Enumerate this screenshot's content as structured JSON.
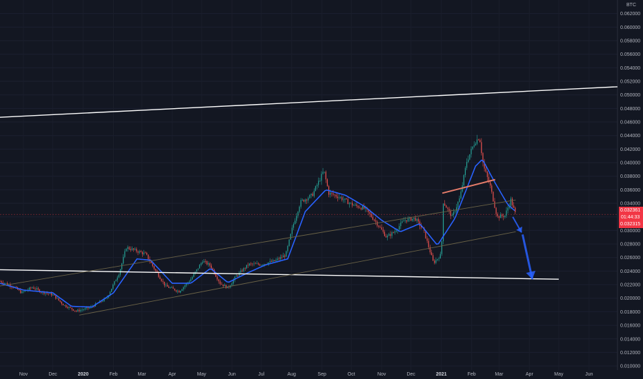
{
  "chart_data": {
    "type": "candlestick",
    "symbol_currency": "BTC",
    "ylim": [
      0.0094,
      0.064
    ],
    "y_ticks": [
      0.01,
      0.012,
      0.014,
      0.016,
      0.018,
      0.02,
      0.022,
      0.024,
      0.026,
      0.028,
      0.03,
      0.032,
      0.034,
      0.036,
      0.038,
      0.04,
      0.042,
      0.044,
      0.046,
      0.048,
      0.05,
      0.052,
      0.054,
      0.056,
      0.058,
      0.06,
      0.062
    ],
    "y_tick_labels": [
      "0.010000",
      "0.012000",
      "0.014000",
      "0.016000",
      "0.018000",
      "0.020000",
      "0.022000",
      "0.024000",
      "0.026000",
      "0.028000",
      "0.030000",
      "0.032000",
      "0.034000",
      "0.036000",
      "0.038000",
      "0.040000",
      "0.042000",
      "0.044000",
      "0.046000",
      "0.048000",
      "0.050000",
      "0.052000",
      "0.054000",
      "0.056000",
      "0.058000",
      "0.060000",
      "0.062000"
    ],
    "x_range": [
      "2019-10-08",
      "2021-06-30"
    ],
    "x_ticks": [
      {
        "date": "2019-11-01",
        "label": "Nov",
        "bold": false
      },
      {
        "date": "2019-12-01",
        "label": "Dec",
        "bold": false
      },
      {
        "date": "2020-01-01",
        "label": "2020",
        "bold": true
      },
      {
        "date": "2020-02-01",
        "label": "Feb",
        "bold": false
      },
      {
        "date": "2020-03-01",
        "label": "Mar",
        "bold": false
      },
      {
        "date": "2020-04-01",
        "label": "Apr",
        "bold": false
      },
      {
        "date": "2020-05-01",
        "label": "May",
        "bold": false
      },
      {
        "date": "2020-06-01",
        "label": "Jun",
        "bold": false
      },
      {
        "date": "2020-07-01",
        "label": "Jul",
        "bold": false
      },
      {
        "date": "2020-08-01",
        "label": "Aug",
        "bold": false
      },
      {
        "date": "2020-09-01",
        "label": "Sep",
        "bold": false
      },
      {
        "date": "2020-10-01",
        "label": "Oct",
        "bold": false
      },
      {
        "date": "2020-11-01",
        "label": "Nov",
        "bold": false
      },
      {
        "date": "2020-12-01",
        "label": "Dec",
        "bold": false
      },
      {
        "date": "2021-01-01",
        "label": "2021",
        "bold": true
      },
      {
        "date": "2021-02-01",
        "label": "Feb",
        "bold": false
      },
      {
        "date": "2021-03-01",
        "label": "Mar",
        "bold": false
      },
      {
        "date": "2021-04-01",
        "label": "Apr",
        "bold": false
      },
      {
        "date": "2021-05-01",
        "label": "May",
        "bold": false
      },
      {
        "date": "2021-06-01",
        "label": "Jun",
        "bold": false
      }
    ],
    "price_keypoints": [
      [
        "2019-10-08",
        0.0225
      ],
      [
        "2019-10-22",
        0.0217
      ],
      [
        "2019-10-30",
        0.0208
      ],
      [
        "2019-11-10",
        0.0216
      ],
      [
        "2019-11-20",
        0.0209
      ],
      [
        "2019-12-01",
        0.0205
      ],
      [
        "2019-12-12",
        0.019
      ],
      [
        "2019-12-25",
        0.0181
      ],
      [
        "2020-01-08",
        0.0186
      ],
      [
        "2020-01-25",
        0.02
      ],
      [
        "2020-02-07",
        0.0238
      ],
      [
        "2020-02-14",
        0.0275
      ],
      [
        "2020-02-24",
        0.027
      ],
      [
        "2020-03-05",
        0.0265
      ],
      [
        "2020-03-13",
        0.0245
      ],
      [
        "2020-03-25",
        0.0218
      ],
      [
        "2020-04-08",
        0.021
      ],
      [
        "2020-04-20",
        0.0228
      ],
      [
        "2020-05-02",
        0.0255
      ],
      [
        "2020-05-10",
        0.0248
      ],
      [
        "2020-05-20",
        0.0222
      ],
      [
        "2020-05-28",
        0.0215
      ],
      [
        "2020-06-05",
        0.0232
      ],
      [
        "2020-06-18",
        0.025
      ],
      [
        "2020-07-01",
        0.025
      ],
      [
        "2020-07-15",
        0.0255
      ],
      [
        "2020-07-26",
        0.0264
      ],
      [
        "2020-08-02",
        0.0305
      ],
      [
        "2020-08-10",
        0.0342
      ],
      [
        "2020-08-22",
        0.0352
      ],
      [
        "2020-09-03",
        0.0388
      ],
      [
        "2020-09-08",
        0.0355
      ],
      [
        "2020-09-18",
        0.035
      ],
      [
        "2020-10-02",
        0.0338
      ],
      [
        "2020-10-15",
        0.0332
      ],
      [
        "2020-10-26",
        0.0313
      ],
      [
        "2020-11-06",
        0.029
      ],
      [
        "2020-11-14",
        0.0298
      ],
      [
        "2020-11-24",
        0.0315
      ],
      [
        "2020-12-05",
        0.0318
      ],
      [
        "2020-12-14",
        0.03
      ],
      [
        "2020-12-24",
        0.0252
      ],
      [
        "2021-01-01",
        0.0265
      ],
      [
        "2021-01-03",
        0.0342
      ],
      [
        "2021-01-12",
        0.032
      ],
      [
        "2021-01-20",
        0.0348
      ],
      [
        "2021-01-27",
        0.0402
      ],
      [
        "2021-02-04",
        0.043
      ],
      [
        "2021-02-09",
        0.0438
      ],
      [
        "2021-02-13",
        0.0395
      ],
      [
        "2021-02-20",
        0.0365
      ],
      [
        "2021-02-27",
        0.032
      ],
      [
        "2021-03-07",
        0.0322
      ],
      [
        "2021-03-13",
        0.0345
      ],
      [
        "2021-03-18",
        0.0323
      ]
    ],
    "moving_average_keypoints": [
      [
        "2019-10-08",
        0.0222
      ],
      [
        "2019-11-01",
        0.0212
      ],
      [
        "2019-12-01",
        0.0208
      ],
      [
        "2019-12-20",
        0.0188
      ],
      [
        "2020-01-10",
        0.0187
      ],
      [
        "2020-02-01",
        0.0208
      ],
      [
        "2020-02-25",
        0.0258
      ],
      [
        "2020-03-10",
        0.0256
      ],
      [
        "2020-04-01",
        0.0222
      ],
      [
        "2020-04-20",
        0.0222
      ],
      [
        "2020-05-10",
        0.0244
      ],
      [
        "2020-05-28",
        0.0223
      ],
      [
        "2020-06-15",
        0.0236
      ],
      [
        "2020-07-05",
        0.0249
      ],
      [
        "2020-07-28",
        0.0258
      ],
      [
        "2020-08-15",
        0.0328
      ],
      [
        "2020-09-05",
        0.036
      ],
      [
        "2020-09-25",
        0.0352
      ],
      [
        "2020-10-15",
        0.0335
      ],
      [
        "2020-11-01",
        0.0315
      ],
      [
        "2020-11-20",
        0.0298
      ],
      [
        "2020-12-10",
        0.031
      ],
      [
        "2020-12-28",
        0.0278
      ],
      [
        "2021-01-15",
        0.0318
      ],
      [
        "2021-02-05",
        0.0395
      ],
      [
        "2021-02-12",
        0.0405
      ],
      [
        "2021-02-25",
        0.037
      ],
      [
        "2021-03-10",
        0.0338
      ],
      [
        "2021-03-18",
        0.0328
      ]
    ],
    "trendlines": [
      {
        "name": "upper-white",
        "color": "#ffffff",
        "from": [
          "2019-10-08",
          0.0467
        ],
        "to": [
          "2021-06-30",
          0.0512
        ]
      },
      {
        "name": "lower-white",
        "color": "#ffffff",
        "from": [
          "2019-10-08",
          0.0242
        ],
        "to": [
          "2021-05-01",
          0.0228
        ]
      },
      {
        "name": "channel-upper",
        "color": "#6b6347",
        "from": [
          "2019-10-08",
          0.0218
        ],
        "to": [
          "2021-03-18",
          0.0345
        ]
      },
      {
        "name": "channel-lower",
        "color": "#6b6347",
        "from": [
          "2019-12-28",
          0.0175
        ],
        "to": [
          "2021-03-18",
          0.0298
        ]
      },
      {
        "name": "neckline",
        "color": "#e57c6a",
        "from": [
          "2021-01-02",
          0.0355
        ],
        "to": [
          "2021-02-25",
          0.0375
        ]
      }
    ],
    "arrows": [
      {
        "name": "arrow-small",
        "color": "#2962ff",
        "from": [
          "2021-03-15",
          0.032
        ],
        "to": [
          "2021-03-24",
          0.0297
        ]
      },
      {
        "name": "arrow-big",
        "color": "#2962ff",
        "from": [
          "2021-03-25",
          0.0294
        ],
        "to": [
          "2021-04-04",
          0.0228
        ]
      }
    ],
    "last_price": {
      "price_label": "0.032361",
      "countdown": "01:44:33",
      "low_label": "0.032315",
      "color": "#f23645"
    },
    "colors": {
      "background": "#131722",
      "up": "#26a69a",
      "down": "#ef5350",
      "ma": "#2962ff"
    }
  }
}
